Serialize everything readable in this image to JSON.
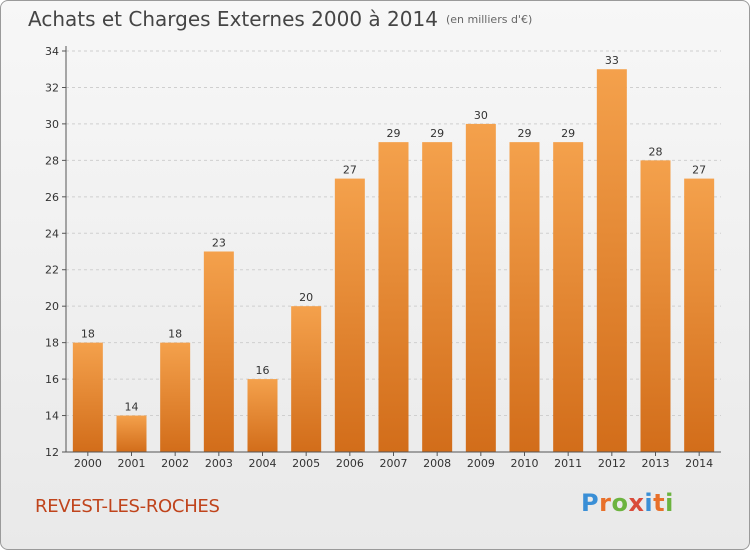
{
  "title": "Achats et Charges Externes 2000 à 2014",
  "subtitle": "(en milliers d'€)",
  "place": "REVEST-LES-ROCHES",
  "logo": {
    "text": "Proxiti",
    "colors": [
      "#3a8fd6",
      "#e8702a",
      "#6cb33f",
      "#d94b3a",
      "#3a8fd6",
      "#e8702a",
      "#6cb33f"
    ]
  },
  "colors": {
    "bar_top": "#f4a14c",
    "bar_bottom": "#d26d1a",
    "place": "#c0441c",
    "grid": "#cfcfcf"
  },
  "chart_data": {
    "type": "bar",
    "categories": [
      "2000",
      "2001",
      "2002",
      "2003",
      "2004",
      "2005",
      "2006",
      "2007",
      "2008",
      "2009",
      "2010",
      "2011",
      "2012",
      "2013",
      "2014"
    ],
    "values": [
      18,
      14,
      18,
      23,
      16,
      20,
      27,
      29,
      29,
      30,
      29,
      29,
      33,
      28,
      27
    ],
    "title": "Achats et Charges Externes 2000 à 2014",
    "ylim": [
      12,
      34
    ],
    "yticks": [
      12,
      14,
      16,
      18,
      20,
      22,
      24,
      26,
      28,
      30,
      32,
      34
    ],
    "grid": true
  }
}
